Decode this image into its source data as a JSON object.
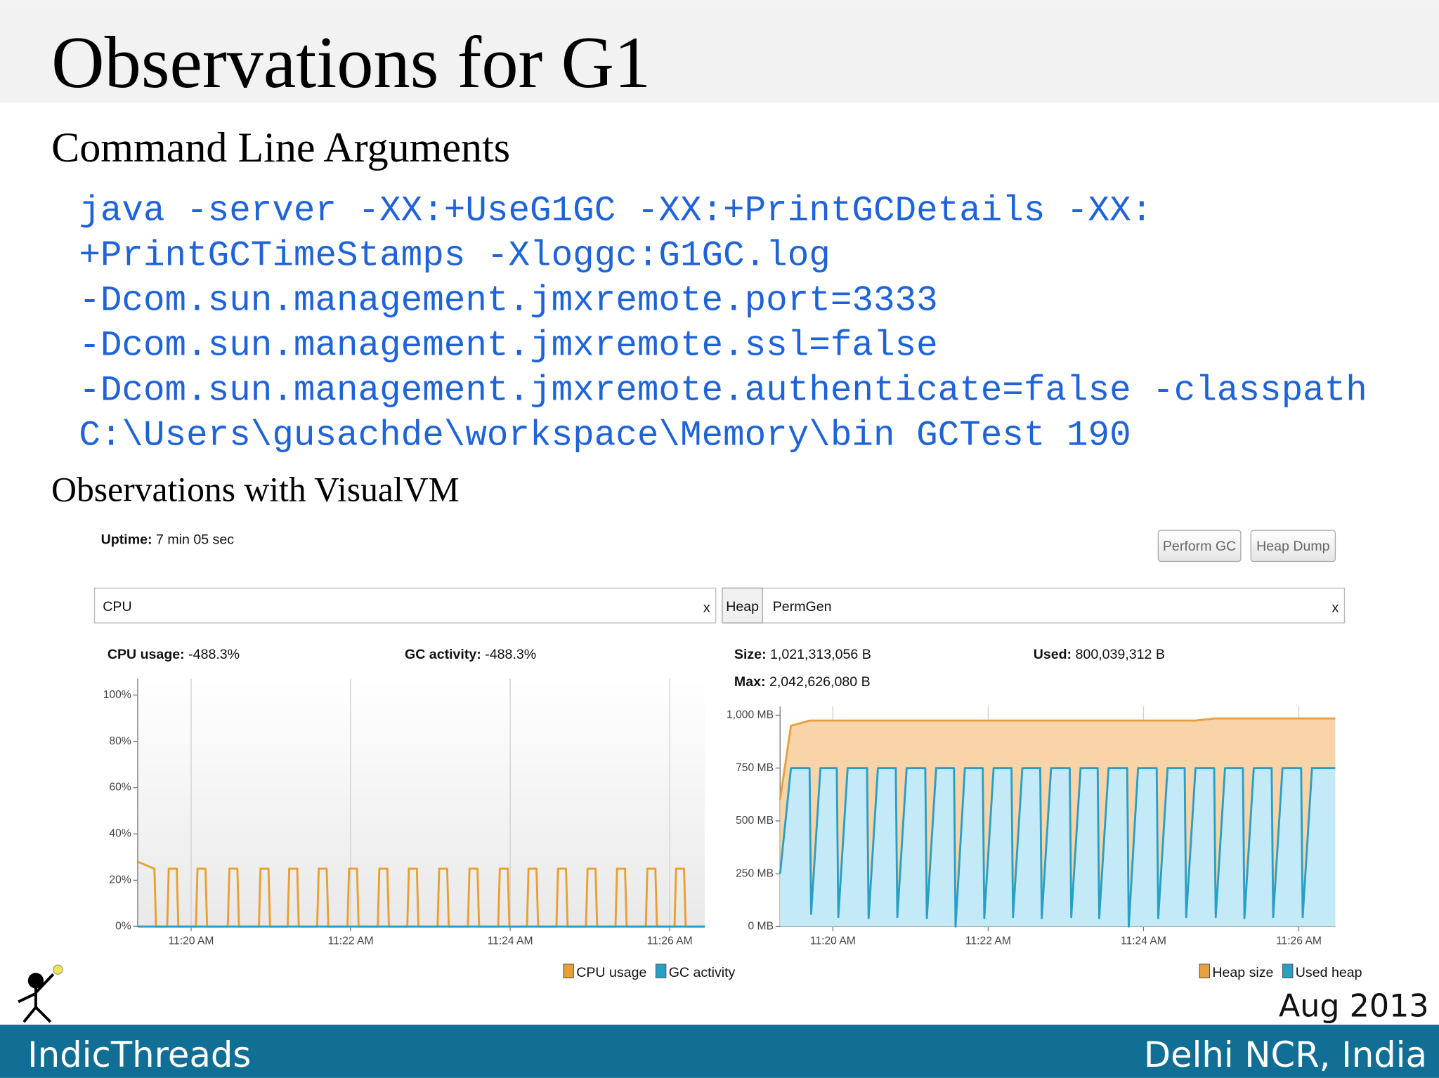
{
  "slide": {
    "title": "Observations for G1",
    "subtitle": "Command Line Arguments",
    "command_lines": [
      "java -server -XX:+UseG1GC -XX:+PrintGCDetails -XX:",
      "+PrintGCTimeStamps -Xloggc:G1GC.log",
      "-Dcom.sun.management.jmxremote.port=3333",
      "-Dcom.sun.management.jmxremote.ssl=false",
      "-Dcom.sun.management.jmxremote.authenticate=false -classpath",
      "C:\\Users\\gusachde\\workspace\\Memory\\bin GCTest 190"
    ],
    "section": "Observations with VisualVM",
    "date": "Aug 2013",
    "brand": "IndicThreads",
    "location": "Delhi NCR, India"
  },
  "visualvm": {
    "uptime_label": "Uptime:",
    "uptime": "7 min 05 sec",
    "buttons": [
      "Perform GC",
      "Heap Dump"
    ],
    "cpu_tab": "CPU",
    "heap_tabs": [
      "Heap",
      "PermGen"
    ],
    "close": "x",
    "cpu_usage_label": "CPU usage:",
    "cpu_usage": "-488.3%",
    "gc_activity_label": "GC activity:",
    "gc_activity": "-488.3%",
    "size_label": "Size:",
    "size": "1,021,313,056 B",
    "used_label": "Used:",
    "used": "800,039,312 B",
    "max_label": "Max:",
    "max": "2,042,626,080 B"
  },
  "chart_data": [
    {
      "type": "line",
      "x": [
        679.33,
        679.54,
        679.56,
        679.7,
        679.72,
        679.82,
        679.84,
        680.06,
        680.08,
        680.18,
        680.2,
        680.46,
        680.48,
        680.58,
        680.6,
        680.85,
        680.87,
        680.97,
        680.99,
        681.21,
        681.23,
        681.33,
        681.35,
        681.58,
        681.6,
        681.7,
        681.72,
        681.96,
        681.98,
        682.08,
        682.1,
        682.34,
        682.36,
        682.46,
        682.48,
        682.71,
        682.73,
        682.83,
        682.85,
        683.09,
        683.11,
        683.21,
        683.23,
        683.47,
        683.49,
        683.59,
        683.61,
        683.85,
        683.87,
        683.97,
        683.99,
        684.21,
        684.23,
        684.33,
        684.35,
        684.58,
        684.6,
        684.7,
        684.72,
        684.95,
        684.97,
        685.07,
        685.09,
        685.32,
        685.34,
        685.44,
        685.46,
        685.7,
        685.72,
        685.82,
        685.84,
        686.06,
        686.08,
        686.18,
        686.2,
        686.44
      ],
      "series": [
        {
          "name": "CPU usage",
          "color": "#e8a030",
          "values": [
            28,
            25,
            0,
            0,
            25,
            25,
            0,
            0,
            25,
            25,
            0,
            0,
            25,
            25,
            0,
            0,
            25,
            25,
            0,
            0,
            25,
            25,
            0,
            0,
            25,
            25,
            0,
            0,
            25,
            25,
            0,
            0,
            25,
            25,
            0,
            0,
            25,
            25,
            0,
            0,
            25,
            25,
            0,
            0,
            25,
            25,
            0,
            0,
            25,
            25,
            0,
            0,
            25,
            25,
            0,
            0,
            25,
            25,
            0,
            0,
            25,
            25,
            0,
            0,
            25,
            25,
            0,
            0,
            25,
            25,
            0,
            0,
            25,
            25,
            0,
            0
          ]
        },
        {
          "name": "GC activity",
          "color": "#2a9fc6",
          "values": [
            0,
            0,
            0,
            0,
            0,
            0,
            0,
            0,
            0,
            0,
            0,
            0,
            0,
            0,
            0,
            0,
            0,
            0,
            0,
            0,
            0,
            0,
            0,
            0,
            0,
            0,
            0,
            0,
            0,
            0,
            0,
            0,
            0,
            0,
            0,
            0,
            0,
            0,
            0,
            0,
            0,
            0,
            0,
            0,
            0,
            0,
            0,
            0,
            0,
            0,
            0,
            0,
            0,
            0,
            0,
            0,
            0,
            0,
            0,
            0,
            0,
            0,
            0,
            0,
            0,
            0,
            0,
            0,
            0,
            0,
            0,
            0,
            0,
            0,
            0,
            0
          ]
        }
      ],
      "xlim": [
        679.33,
        686.44
      ],
      "xticks": [
        {
          "value": 680,
          "label": "11:20 AM"
        },
        {
          "value": 682,
          "label": "11:22 AM"
        },
        {
          "value": 684,
          "label": "11:24 AM"
        },
        {
          "value": 686,
          "label": "11:26 AM"
        }
      ],
      "ylim": [
        0,
        107
      ],
      "yticks": [
        {
          "value": 0,
          "label": "0%"
        },
        {
          "value": 20,
          "label": "20%"
        },
        {
          "value": 40,
          "label": "40%"
        },
        {
          "value": 60,
          "label": "60%"
        },
        {
          "value": 80,
          "label": "80%"
        },
        {
          "value": 100,
          "label": "100%"
        }
      ],
      "grid": true
    },
    {
      "type": "area",
      "x": [
        679.32,
        679.46,
        679.7,
        679.72,
        679.84,
        680.05,
        680.07,
        680.19,
        680.44,
        680.46,
        680.58,
        680.81,
        680.83,
        680.95,
        681.19,
        681.21,
        681.33,
        681.56,
        681.58,
        681.7,
        681.93,
        681.95,
        682.07,
        682.3,
        682.32,
        682.44,
        682.67,
        682.69,
        682.81,
        683.05,
        683.07,
        683.19,
        683.41,
        683.43,
        683.55,
        683.79,
        683.81,
        683.93,
        684.17,
        684.19,
        684.31,
        684.53,
        684.55,
        684.67,
        684.91,
        684.93,
        685.05,
        685.28,
        685.3,
        685.42,
        685.65,
        685.67,
        685.79,
        686.03,
        686.05,
        686.17,
        686.47
      ],
      "series": [
        {
          "name": "Heap size",
          "color": "#e8a040",
          "fill": "#f9d4a8",
          "values": [
            600,
            950,
            975,
            975,
            975,
            975,
            975,
            975,
            975,
            975,
            975,
            975,
            975,
            975,
            975,
            975,
            975,
            975,
            975,
            975,
            975,
            975,
            975,
            975,
            975,
            975,
            975,
            975,
            975,
            975,
            975,
            975,
            975,
            975,
            975,
            975,
            975,
            975,
            975,
            975,
            975,
            975,
            975,
            975,
            985,
            985,
            985,
            985,
            985,
            985,
            985,
            985,
            985,
            985,
            985,
            985,
            985
          ]
        },
        {
          "name": "Used heap",
          "color": "#2a9fc6",
          "fill": "#c4eaf7",
          "values": [
            250,
            750,
            750,
            60,
            750,
            750,
            45,
            750,
            750,
            40,
            750,
            750,
            45,
            750,
            750,
            40,
            750,
            750,
            0,
            750,
            750,
            40,
            750,
            750,
            45,
            750,
            750,
            40,
            750,
            750,
            45,
            750,
            750,
            40,
            750,
            750,
            0,
            750,
            750,
            40,
            750,
            750,
            45,
            750,
            750,
            45,
            750,
            750,
            40,
            750,
            750,
            45,
            750,
            750,
            45,
            750,
            750
          ]
        }
      ],
      "xlim": [
        679.32,
        686.47
      ],
      "xticks": [
        {
          "value": 680,
          "label": "11:20 AM"
        },
        {
          "value": 682,
          "label": "11:22 AM"
        },
        {
          "value": 684,
          "label": "11:24 AM"
        },
        {
          "value": 686,
          "label": "11:26 AM"
        }
      ],
      "ylim": [
        0,
        1042
      ],
      "yticks": [
        {
          "value": 0,
          "label": "0 MB"
        },
        {
          "value": 250,
          "label": "250 MB"
        },
        {
          "value": 500,
          "label": "500 MB"
        },
        {
          "value": 750,
          "label": "750 MB"
        },
        {
          "value": 1000,
          "label": "1,000 MB"
        }
      ],
      "grid": true
    }
  ]
}
